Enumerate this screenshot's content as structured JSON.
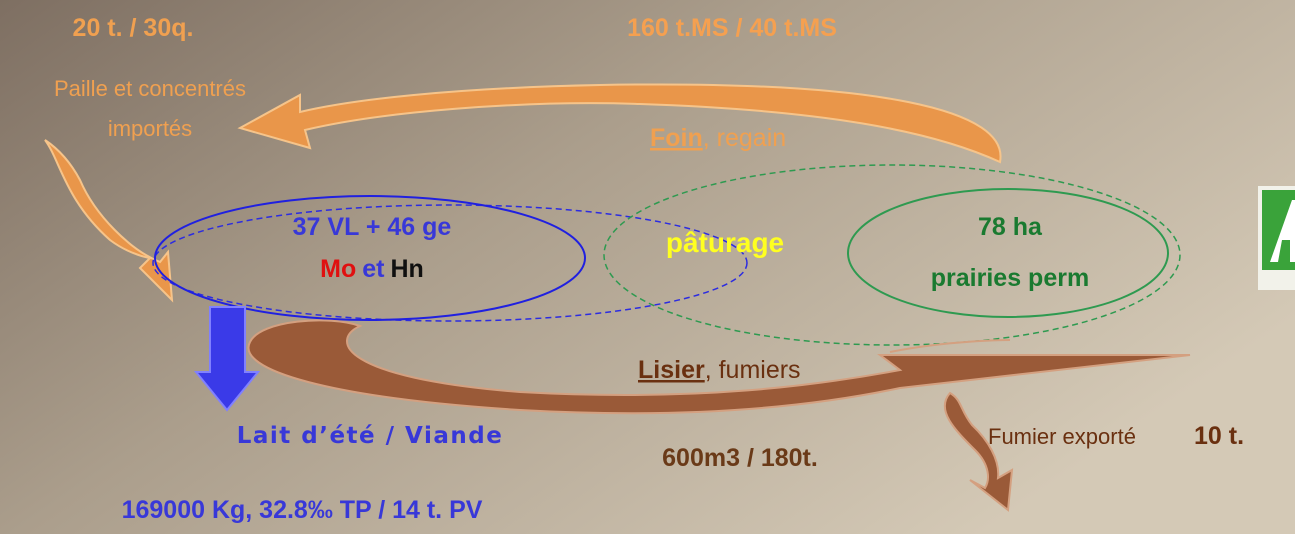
{
  "top_left": {
    "quantity": "20 t. / 30q.",
    "label_lines": [
      "Paille et concentrés",
      "importés"
    ]
  },
  "top_center": {
    "quantity": "160 t.MS / 40 t.MS"
  },
  "hay": {
    "main": "Foin",
    "rest": ", regain"
  },
  "herd": {
    "line1": "37 VL + 46 ge",
    "breed1": "Mo",
    "joiner": "et",
    "breed2": "Hn"
  },
  "grazing": "pâturage",
  "meadows": {
    "line1": "78 ha",
    "line2": "prairies perm"
  },
  "manure": {
    "main": "Lisier",
    "rest": ", fumiers",
    "quantity": "600m3 / 180t."
  },
  "output": {
    "label": "Lait d’été / Viande",
    "quantity": "169000 Kg, 32.8‰ TP / 14 t. PV"
  },
  "export": {
    "label": "Fumier exporté",
    "quantity": "10 t."
  }
}
